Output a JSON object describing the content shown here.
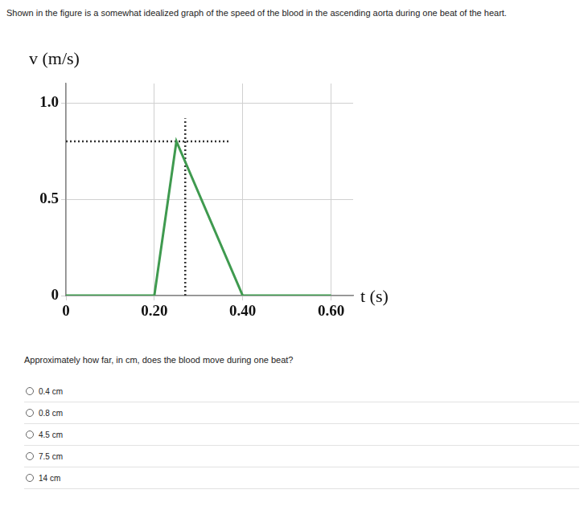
{
  "header": {
    "text": "Shown in the figure is a somewhat idealized graph of the speed of the blood in the ascending aorta during one beat of the heart."
  },
  "chart_data": {
    "type": "line",
    "x_label": "t (s)",
    "y_label": "v (m/s)",
    "xlim": [
      0,
      0.65
    ],
    "ylim": [
      0,
      1.1
    ],
    "xticks": [
      0,
      {
        "value": 0.2,
        "label": "0.20"
      },
      {
        "value": 0.4,
        "label": "0.40"
      },
      {
        "value": 0.6,
        "label": "0.60"
      }
    ],
    "yticks": [
      0,
      0.5,
      {
        "value": 1,
        "label": "1.0"
      }
    ],
    "grid": true,
    "series": [
      {
        "color": "#3f9a4f",
        "line_style": "solid",
        "x": [
          0,
          0.2,
          0.25,
          0.4,
          0.6
        ],
        "values": [
          0,
          0,
          0.8,
          0,
          0
        ]
      },
      {
        "color": "#333333",
        "line_style": "dotted",
        "x": [
          0,
          0.37
        ],
        "values": [
          0.8,
          0.8
        ]
      },
      {
        "color": "#333333",
        "line_style": "dotted",
        "x": [
          0.27,
          0.27
        ],
        "values": [
          0,
          0.92
        ]
      }
    ]
  },
  "question": {
    "text": "Approximately how far, in cm, does the blood move during one beat?",
    "options": [
      "0.4 cm",
      "0.8 cm",
      "4.5 cm",
      "7.5 cm",
      "14 cm"
    ]
  }
}
